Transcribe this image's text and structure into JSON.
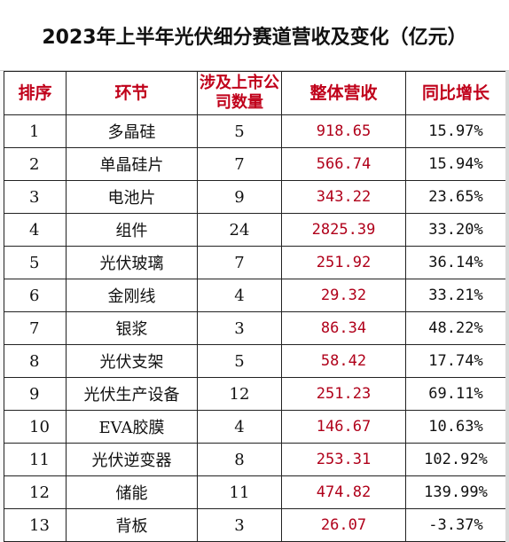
{
  "title": "2023年上半年光伏细分赛道营收及变化（亿元）",
  "headers": {
    "rank": "排序",
    "segment": "环节",
    "companies": "涉及上市公司数量",
    "revenue": "整体营收",
    "yoy": "同比增长"
  },
  "rows": [
    {
      "rank": "1",
      "segment": "多晶硅",
      "companies": "5",
      "revenue": "918.65",
      "yoy": "15.97%"
    },
    {
      "rank": "2",
      "segment": "单晶硅片",
      "companies": "7",
      "revenue": "566.74",
      "yoy": "15.94%"
    },
    {
      "rank": "3",
      "segment": "电池片",
      "companies": "9",
      "revenue": "343.22",
      "yoy": "23.65%"
    },
    {
      "rank": "4",
      "segment": "组件",
      "companies": "24",
      "revenue": "2825.39",
      "yoy": "33.20%"
    },
    {
      "rank": "5",
      "segment": "光伏玻璃",
      "companies": "7",
      "revenue": "251.92",
      "yoy": "36.14%"
    },
    {
      "rank": "6",
      "segment": "金刚线",
      "companies": "4",
      "revenue": "29.32",
      "yoy": "33.21%"
    },
    {
      "rank": "7",
      "segment": "银浆",
      "companies": "3",
      "revenue": "86.34",
      "yoy": "48.22%"
    },
    {
      "rank": "8",
      "segment": "光伏支架",
      "companies": "5",
      "revenue": "58.42",
      "yoy": "17.74%"
    },
    {
      "rank": "9",
      "segment": "光伏生产设备",
      "companies": "12",
      "revenue": "251.23",
      "yoy": "69.11%"
    },
    {
      "rank": "10",
      "segment": "EVA胶膜",
      "companies": "4",
      "revenue": "146.67",
      "yoy": "10.63%"
    },
    {
      "rank": "11",
      "segment": "光伏逆变器",
      "companies": "8",
      "revenue": "253.31",
      "yoy": "102.92%"
    },
    {
      "rank": "12",
      "segment": "储能",
      "companies": "11",
      "revenue": "474.82",
      "yoy": "139.99%"
    },
    {
      "rank": "13",
      "segment": "背板",
      "companies": "3",
      "revenue": "26.07",
      "yoy": "-3.37%"
    }
  ],
  "colors": {
    "header_text": "#c0001a",
    "revenue_text": "#b0001a",
    "border": "#222222"
  }
}
